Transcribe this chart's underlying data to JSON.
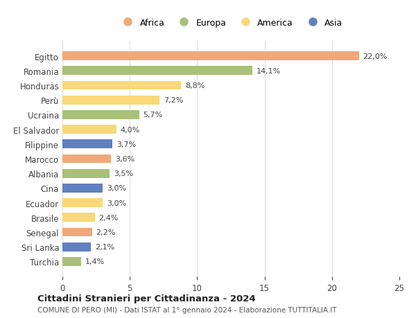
{
  "categories": [
    "Egitto",
    "Romania",
    "Honduras",
    "Perù",
    "Ucraina",
    "El Salvador",
    "Filippine",
    "Marocco",
    "Albania",
    "Cina",
    "Ecuador",
    "Brasile",
    "Senegal",
    "Sri Lanka",
    "Turchia"
  ],
  "values": [
    22.0,
    14.1,
    8.8,
    7.2,
    5.7,
    4.0,
    3.7,
    3.6,
    3.5,
    3.0,
    3.0,
    2.4,
    2.2,
    2.1,
    1.4
  ],
  "labels": [
    "22,0%",
    "14,1%",
    "8,8%",
    "7,2%",
    "5,7%",
    "4,0%",
    "3,7%",
    "3,6%",
    "3,5%",
    "3,0%",
    "3,0%",
    "2,4%",
    "2,2%",
    "2,1%",
    "1,4%"
  ],
  "continents": [
    "Africa",
    "Europa",
    "America",
    "America",
    "Europa",
    "America",
    "Asia",
    "Africa",
    "Europa",
    "Asia",
    "America",
    "America",
    "Africa",
    "Asia",
    "Europa"
  ],
  "continent_colors": {
    "Africa": "#F0A878",
    "Europa": "#A8C078",
    "America": "#F8D878",
    "Asia": "#6080C0"
  },
  "legend_order": [
    "Africa",
    "Europa",
    "America",
    "Asia"
  ],
  "title": "Cittadini Stranieri per Cittadinanza - 2024",
  "subtitle": "COMUNE DI PERO (MI) - Dati ISTAT al 1° gennaio 2024 - Elaborazione TUTTITALIA.IT",
  "xlim": [
    0,
    25
  ],
  "xticks": [
    0,
    5,
    10,
    15,
    20,
    25
  ],
  "background_color": "#ffffff",
  "grid_color": "#dddddd"
}
